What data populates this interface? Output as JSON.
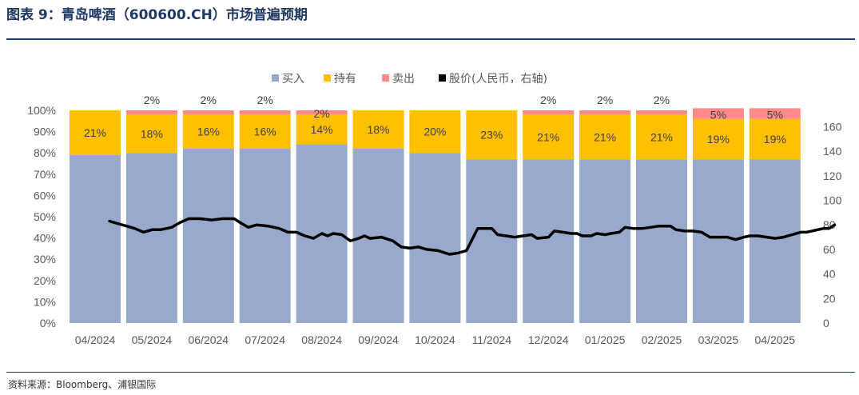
{
  "header": {
    "title": "图表 9：青岛啤酒（600600.CH）市场普遍预期"
  },
  "footer": {
    "source": "资料来源：Bloomberg、浦银国际"
  },
  "colors": {
    "buy": "#98a9cc",
    "hold": "#ffc000",
    "sell": "#ff8a8a",
    "price": "#000000",
    "title": "#1f3864"
  },
  "chart_data": {
    "type": "bar",
    "stacked": true,
    "categories": [
      "04/2024",
      "05/2024",
      "06/2024",
      "07/2024",
      "08/2024",
      "09/2024",
      "10/2024",
      "11/2024",
      "12/2024",
      "01/2025",
      "02/2025",
      "03/2025",
      "04/2025"
    ],
    "series": [
      {
        "name": "买入",
        "axis": "left",
        "values": [
          79,
          80,
          82,
          82,
          84,
          82,
          80,
          77,
          77,
          77,
          77,
          77,
          77
        ]
      },
      {
        "name": "持有",
        "axis": "left",
        "values": [
          21,
          18,
          16,
          16,
          14,
          18,
          20,
          23,
          21,
          21,
          21,
          19,
          19
        ]
      },
      {
        "name": "卖出",
        "axis": "left",
        "values": [
          0,
          2,
          2,
          2,
          2,
          0,
          0,
          0,
          2,
          2,
          2,
          5,
          5
        ]
      }
    ],
    "segment_labels": {
      "hold": [
        "21%",
        "18%",
        "16%",
        "16%",
        "14%",
        "18%",
        "20%",
        "23%",
        "21%",
        "21%",
        "21%",
        "19%",
        "19%"
      ],
      "sell": [
        "",
        "2%",
        "2%",
        "2%",
        "2%",
        "",
        "",
        "",
        "2%",
        "2%",
        "2%",
        "5%",
        "5%"
      ]
    },
    "line_series": {
      "name": "股价(人民币，右轴)",
      "axis": "right",
      "points": [
        [
          0.0,
          83
        ],
        [
          0.15,
          81
        ],
        [
          0.3,
          79
        ],
        [
          0.45,
          77
        ],
        [
          0.6,
          74
        ],
        [
          0.75,
          76
        ],
        [
          0.9,
          76
        ],
        [
          1.0,
          77
        ],
        [
          1.1,
          78
        ],
        [
          1.25,
          82
        ],
        [
          1.4,
          85
        ],
        [
          1.6,
          85
        ],
        [
          1.8,
          84
        ],
        [
          2.0,
          85
        ],
        [
          2.2,
          85
        ],
        [
          2.3,
          82
        ],
        [
          2.45,
          78
        ],
        [
          2.6,
          80
        ],
        [
          2.8,
          79
        ],
        [
          3.0,
          77
        ],
        [
          3.15,
          74
        ],
        [
          3.3,
          74
        ],
        [
          3.45,
          71
        ],
        [
          3.6,
          69
        ],
        [
          3.75,
          73
        ],
        [
          3.85,
          71
        ],
        [
          3.95,
          73
        ],
        [
          4.1,
          72
        ],
        [
          4.25,
          67
        ],
        [
          4.4,
          69
        ],
        [
          4.5,
          71
        ],
        [
          4.6,
          69
        ],
        [
          4.8,
          70
        ],
        [
          5.0,
          67
        ],
        [
          5.15,
          62
        ],
        [
          5.3,
          61
        ],
        [
          5.45,
          62
        ],
        [
          5.6,
          60
        ],
        [
          5.8,
          59
        ],
        [
          6.0,
          56
        ],
        [
          6.15,
          57
        ],
        [
          6.3,
          59
        ],
        [
          6.4,
          68
        ],
        [
          6.5,
          77
        ],
        [
          6.75,
          77
        ],
        [
          6.85,
          72
        ],
        [
          7.0,
          71
        ],
        [
          7.15,
          70
        ],
        [
          7.3,
          71
        ],
        [
          7.45,
          72
        ],
        [
          7.55,
          69
        ],
        [
          7.75,
          70
        ],
        [
          7.85,
          75
        ],
        [
          8.0,
          74
        ],
        [
          8.15,
          73
        ],
        [
          8.25,
          73
        ],
        [
          8.35,
          71
        ],
        [
          8.5,
          71
        ],
        [
          8.6,
          73
        ],
        [
          8.75,
          72
        ],
        [
          8.85,
          73
        ],
        [
          9.0,
          74
        ],
        [
          9.1,
          78
        ],
        [
          9.25,
          77
        ],
        [
          9.4,
          77
        ],
        [
          9.55,
          78
        ],
        [
          9.7,
          79
        ],
        [
          9.9,
          79
        ],
        [
          10.0,
          76
        ],
        [
          10.15,
          75
        ],
        [
          10.3,
          75
        ],
        [
          10.45,
          74
        ],
        [
          10.6,
          70
        ],
        [
          10.75,
          70
        ],
        [
          10.9,
          70
        ],
        [
          11.05,
          68
        ],
        [
          11.2,
          70
        ],
        [
          11.3,
          71
        ],
        [
          11.45,
          71
        ],
        [
          11.6,
          70
        ],
        [
          11.75,
          69
        ],
        [
          11.9,
          70
        ],
        [
          12.05,
          72
        ],
        [
          12.2,
          74
        ],
        [
          12.3,
          74
        ],
        [
          12.4,
          75
        ],
        [
          12.5,
          76
        ],
        [
          12.6,
          77
        ],
        [
          12.7,
          77
        ],
        [
          12.8,
          80
        ]
      ]
    },
    "left_axis": {
      "ylim": [
        0,
        100
      ],
      "ticks": [
        "0%",
        "10%",
        "20%",
        "30%",
        "40%",
        "50%",
        "60%",
        "70%",
        "80%",
        "90%",
        "100%"
      ]
    },
    "right_axis": {
      "ylim": [
        0,
        173.3
      ],
      "ticks": [
        "0",
        "20",
        "40",
        "60",
        "80",
        "100",
        "120",
        "140",
        "160"
      ]
    },
    "legend": {
      "placement": "top",
      "items": [
        {
          "label": "买入",
          "key": "buy"
        },
        {
          "label": "持有",
          "key": "hold"
        },
        {
          "label": "卖出",
          "key": "sell"
        },
        {
          "label": "股价(人民币，右轴)",
          "key": "price"
        }
      ]
    },
    "xlabel": "",
    "ylabel": "",
    "grid": false
  }
}
